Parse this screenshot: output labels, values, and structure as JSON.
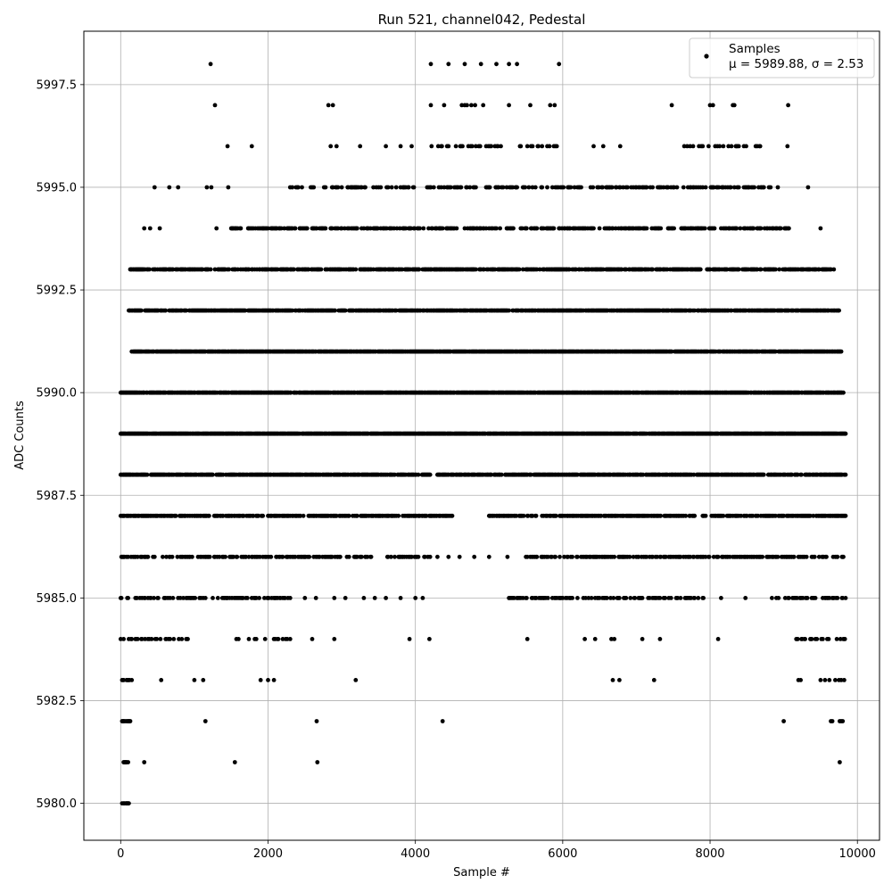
{
  "chart_data": {
    "type": "scatter",
    "title": "Run 521, channel042, Pedestal",
    "xlabel": "Sample #",
    "ylabel": "ADC Counts",
    "xlim": [
      -500,
      10300
    ],
    "ylim": [
      5979.1,
      5998.8
    ],
    "xticks": [
      0,
      2000,
      4000,
      6000,
      8000,
      10000
    ],
    "xtick_labels": [
      "0",
      "2000",
      "4000",
      "6000",
      "8000",
      "10000"
    ],
    "yticks": [
      5980.0,
      5982.5,
      5985.0,
      5987.5,
      5990.0,
      5992.5,
      5995.0,
      5997.5
    ],
    "ytick_labels": [
      "5980.0",
      "5982.5",
      "5985.0",
      "5987.5",
      "5990.0",
      "5992.5",
      "5995.0",
      "5997.5"
    ],
    "grid": true,
    "legend_position": "top-right",
    "legend_label": "Samples",
    "legend_stats": "μ = 5989.88, σ = 2.53",
    "marker_color": "#000000",
    "n_samples": 9840,
    "series": [
      {
        "name": "Samples",
        "level_bands": [
          {
            "y": 5980,
            "ranges": [
              [
                20,
                110
              ]
            ],
            "density": 0.8
          },
          {
            "y": 5981,
            "ranges": [
              [
                20,
                120
              ]
            ],
            "density": 0.8
          },
          {
            "y": 5981,
            "x_points": [
              320,
              1550,
              2670,
              9760
            ]
          },
          {
            "y": 5982,
            "ranges": [
              [
                20,
                130
              ]
            ],
            "density": 0.8
          },
          {
            "y": 5982,
            "x_points": [
              1150,
              2660,
              4370,
              9000,
              9640,
              9660,
              9760,
              9780,
              9800
            ]
          },
          {
            "y": 5983,
            "ranges": [
              [
                0,
                150
              ]
            ],
            "density": 0.6
          },
          {
            "y": 5983,
            "x_points": [
              550,
              1000,
              1120,
              1900,
              2000,
              2080,
              3190,
              6680,
              6770,
              7240,
              9200,
              9230,
              9500,
              9560,
              9620,
              9700,
              9750,
              9780,
              9820
            ]
          },
          {
            "y": 5984,
            "ranges": [
              [
                0,
                1000
              ],
              [
                1550,
                2300
              ],
              [
                9050,
                9840
              ]
            ],
            "density": 0.25
          },
          {
            "y": 5984,
            "x_points": [
              2600,
              2900,
              3920,
              4190,
              5520,
              6300,
              6440,
              6660,
              6700,
              7080,
              7320,
              8110
            ]
          },
          {
            "y": 5985,
            "ranges": [
              [
                0,
                2300
              ],
              [
                5250,
                7950
              ],
              [
                8800,
                9840
              ]
            ],
            "density": 0.35
          },
          {
            "y": 5985,
            "x_points": [
              2500,
              2650,
              2900,
              3050,
              3300,
              3450,
              3600,
              3800,
              4000,
              4100,
              8150,
              8480
            ]
          },
          {
            "y": 5986,
            "ranges": [
              [
                0,
                3400
              ],
              [
                3600,
                4200
              ],
              [
                5500,
                9840
              ]
            ],
            "density": 0.4
          },
          {
            "y": 5986,
            "x_points": [
              4300,
              4450,
              4600,
              4800,
              5000,
              5250
            ]
          },
          {
            "y": 5987,
            "ranges": [
              [
                0,
                4500
              ],
              [
                5000,
                7800
              ],
              [
                7900,
                9840
              ]
            ],
            "density": 0.6
          },
          {
            "y": 5988,
            "ranges": [
              [
                0,
                4200
              ],
              [
                4300,
                9840
              ]
            ],
            "density": 0.7
          },
          {
            "y": 5989,
            "ranges": [
              [
                0,
                9840
              ]
            ],
            "density": 0.9
          },
          {
            "y": 5990,
            "ranges": [
              [
                0,
                9840
              ]
            ],
            "density": 0.85
          },
          {
            "y": 5991,
            "ranges": [
              [
                150,
                9780
              ]
            ],
            "density": 0.85
          },
          {
            "y": 5992,
            "ranges": [
              [
                100,
                9750
              ]
            ],
            "density": 0.75
          },
          {
            "y": 5993,
            "ranges": [
              [
                120,
                9700
              ]
            ],
            "density": 0.6
          },
          {
            "y": 5994,
            "ranges": [
              [
                1500,
                9100
              ]
            ],
            "density": 0.45
          },
          {
            "y": 5994,
            "x_points": [
              320,
              400,
              530,
              1300,
              9500
            ]
          },
          {
            "y": 5995,
            "ranges": [
              [
                2300,
                9000
              ]
            ],
            "density": 0.3
          },
          {
            "y": 5995,
            "x_points": [
              460,
              660,
              780,
              1170,
              1230,
              1460,
              9330
            ]
          },
          {
            "y": 5996,
            "ranges": [
              [
                4200,
                6000
              ],
              [
                7600,
                8700
              ]
            ],
            "density": 0.2
          },
          {
            "y": 5996,
            "x_points": [
              1450,
              1780,
              2850,
              2930,
              3250,
              3600,
              3800,
              3950,
              6420,
              6550,
              6780,
              9050
            ]
          },
          {
            "y": 5997,
            "x_points": [
              1280,
              2820,
              2880,
              4210,
              4390,
              4630,
              4670,
              4700,
              4760,
              4810,
              4920,
              5270,
              5560,
              5830,
              5890,
              7480,
              8000,
              8040,
              8310,
              8330,
              9060
            ]
          },
          {
            "y": 5998,
            "x_points": [
              1220,
              4210,
              4450,
              4670,
              4890,
              5100,
              5270,
              5380,
              5950
            ]
          }
        ]
      }
    ]
  }
}
